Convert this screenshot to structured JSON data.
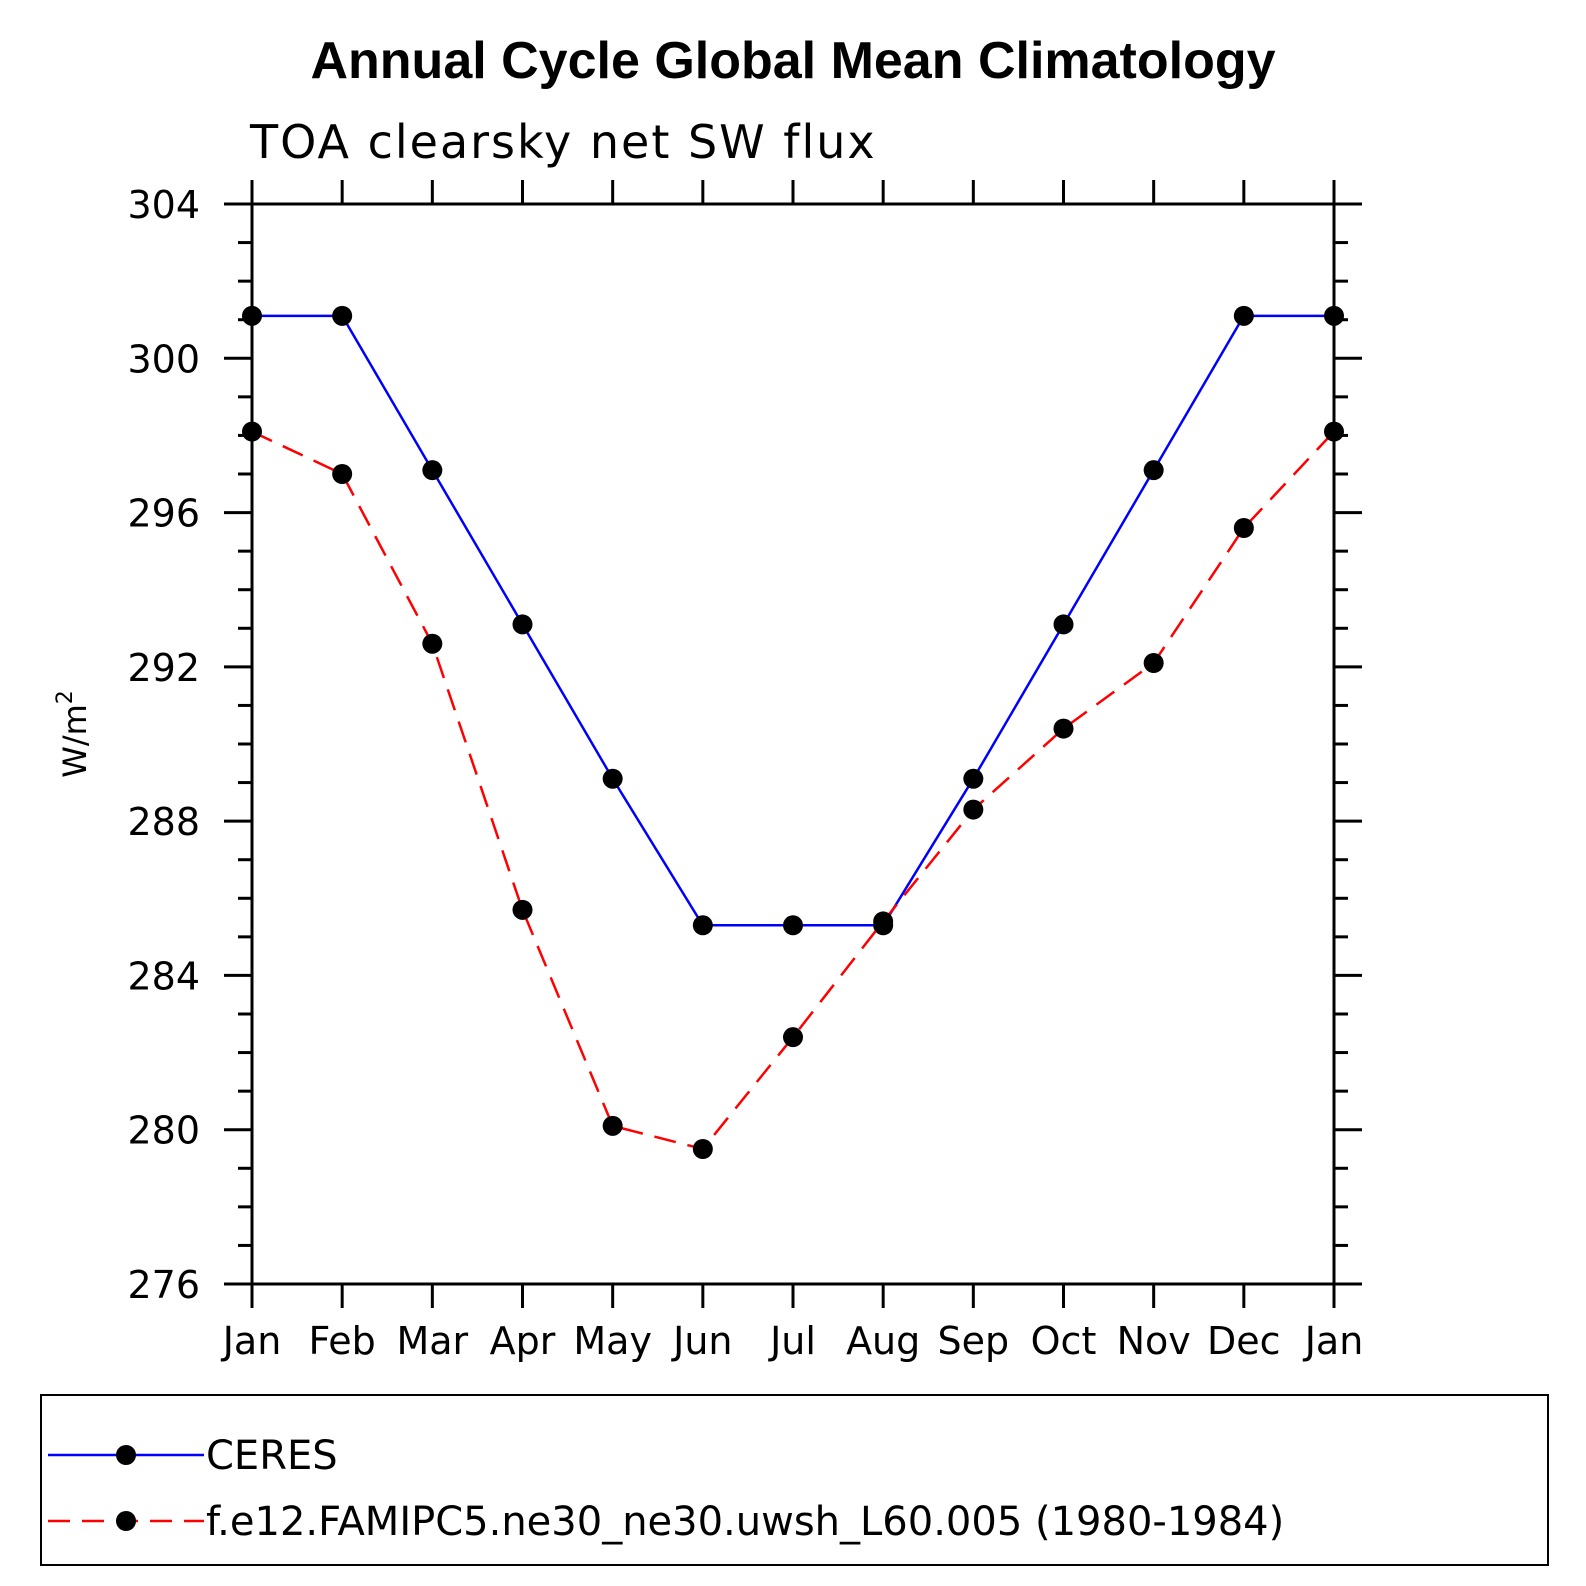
{
  "chart_data": {
    "type": "line",
    "title": "Annual Cycle Global Mean Climatology",
    "subtitle": "TOA clearsky net SW flux",
    "ylabel_base": "W/m",
    "ylabel_sup": "2",
    "xlabel": "",
    "categories": [
      "Jan",
      "Feb",
      "Mar",
      "Apr",
      "May",
      "Jun",
      "Jul",
      "Aug",
      "Sep",
      "Oct",
      "Nov",
      "Dec",
      "Jan"
    ],
    "ylim": [
      276,
      304
    ],
    "yticks": [
      276,
      280,
      284,
      288,
      292,
      296,
      300,
      304
    ],
    "grid": false,
    "legend_position": "bottom",
    "series": [
      {
        "name": "CERES",
        "color": "#0000ff",
        "dash": "solid",
        "values": [
          301.1,
          301.1,
          297.1,
          293.1,
          289.1,
          285.3,
          285.3,
          285.3,
          289.1,
          293.1,
          297.1,
          301.1,
          301.1
        ]
      },
      {
        "name": "f.e12.FAMIPC5.ne30_ne30.uwsh_L60.005 (1980-1984)",
        "color": "#ff0000",
        "dash": "dashed",
        "values": [
          298.1,
          297.0,
          292.6,
          285.7,
          280.1,
          279.5,
          282.4,
          285.4,
          288.3,
          290.4,
          292.1,
          295.6,
          298.1
        ]
      }
    ]
  }
}
